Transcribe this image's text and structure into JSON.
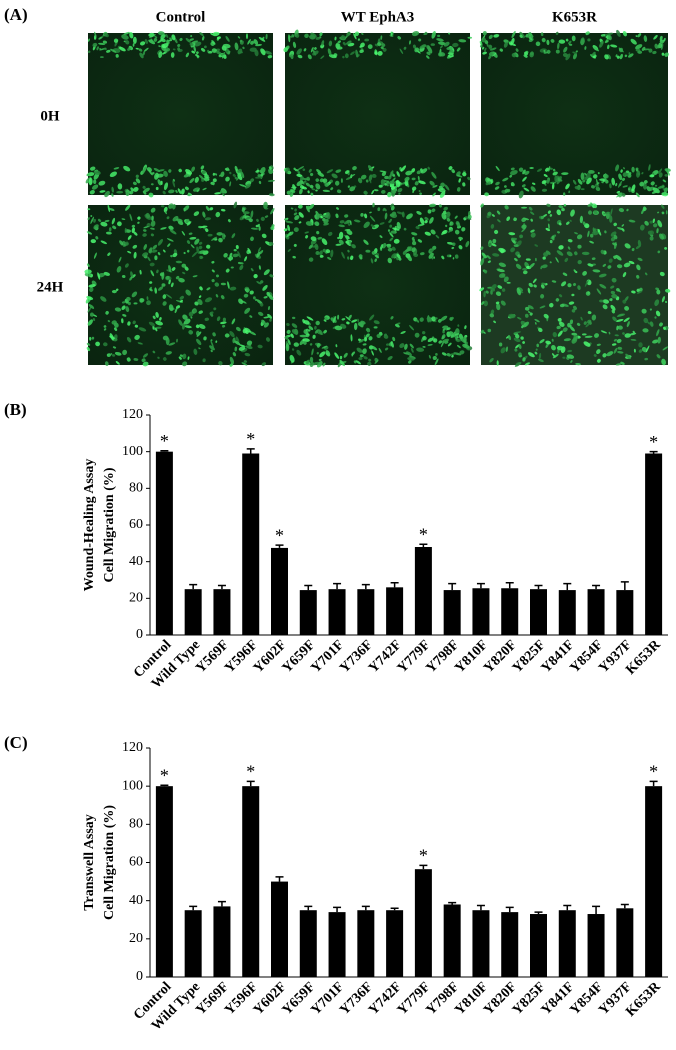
{
  "panel_a": {
    "label": "(A)",
    "columns": [
      "Control",
      "WT EphA3",
      "K653R"
    ],
    "rows": [
      "0H",
      "24H"
    ]
  },
  "chart_data": [
    {
      "type": "bar",
      "panel": "(B)",
      "ylabel": [
        "Wound-Healing Assay",
        "Cell Migration (%)"
      ],
      "categories": [
        "Control",
        "Wild Type",
        "Y569F",
        "Y596F",
        "Y602F",
        "Y659F",
        "Y701F",
        "Y736F",
        "Y742F",
        "Y779F",
        "Y798F",
        "Y810F",
        "Y820F",
        "Y825F",
        "Y841F",
        "Y854F",
        "Y937F",
        "K653R"
      ],
      "values": [
        100,
        25,
        25,
        99,
        47.5,
        24.5,
        25,
        25,
        26,
        48,
        24.5,
        25.5,
        25.5,
        25,
        24.5,
        25,
        24.5,
        99
      ],
      "errors": [
        0.5,
        2.5,
        2,
        2.5,
        1.5,
        2.5,
        3,
        2.5,
        2.5,
        1.5,
        3.5,
        2.5,
        3,
        2,
        3.5,
        2,
        4.5,
        1
      ],
      "markers": [
        "*",
        null,
        null,
        "*",
        "*",
        null,
        null,
        null,
        null,
        "*",
        null,
        null,
        null,
        null,
        null,
        null,
        null,
        "*"
      ],
      "color": "#000000",
      "ylim": [
        0,
        120
      ],
      "yticks": [
        0,
        20,
        40,
        60,
        80,
        100,
        120
      ]
    },
    {
      "type": "bar",
      "panel": "(C)",
      "ylabel": [
        "Transwell Assay",
        "Cell Migration (%)"
      ],
      "categories": [
        "Control",
        "Wild Type",
        "Y569F",
        "Y596F",
        "Y602F",
        "Y659F",
        "Y701F",
        "Y736F",
        "Y742F",
        "Y779F",
        "Y798F",
        "Y810F",
        "Y820F",
        "Y825F",
        "Y841F",
        "Y854F",
        "Y937F",
        "K653R"
      ],
      "values": [
        100,
        35,
        37,
        100,
        50,
        35,
        34,
        35,
        35,
        56.5,
        38,
        35,
        34,
        33,
        35,
        33,
        36,
        100
      ],
      "errors": [
        0.5,
        2,
        2.5,
        2.5,
        2.5,
        2,
        2.5,
        2,
        1,
        2,
        1,
        2.5,
        2.5,
        1,
        2.5,
        4,
        2,
        2.5
      ],
      "markers": [
        "*",
        null,
        null,
        "*",
        null,
        null,
        null,
        null,
        null,
        "*",
        null,
        null,
        null,
        null,
        null,
        null,
        null,
        "*"
      ],
      "color": "#000000",
      "ylim": [
        0,
        120
      ],
      "yticks": [
        0,
        20,
        40,
        60,
        80,
        100,
        120
      ]
    }
  ]
}
